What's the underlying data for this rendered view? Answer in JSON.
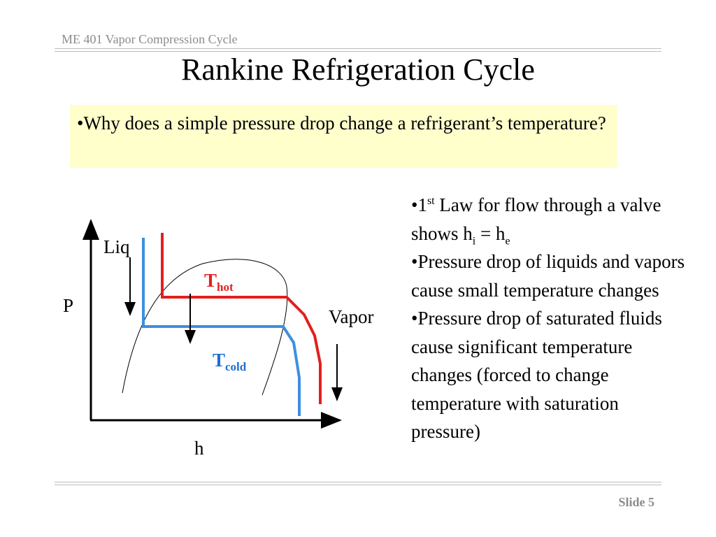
{
  "header": {
    "course": "ME 401 Vapor Compression Cycle",
    "title": "Rankine Refrigeration Cycle"
  },
  "question": "•Why does a simple pressure drop change a refrigerant’s temperature?",
  "diagram": {
    "y_axis": "P",
    "x_axis": "h",
    "liquid": "Liq",
    "vapor": "Vapor",
    "hot": {
      "symbol": "T",
      "subscript": "hot"
    },
    "cold": {
      "symbol": "T",
      "subscript": "cold"
    }
  },
  "bullets": [
    [
      {
        "text": "•1"
      },
      {
        "text": "st",
        "pos": "sup"
      },
      {
        "text": " Law for flow through a valve shows h"
      },
      {
        "text": "i",
        "pos": "sub"
      },
      {
        "text": " = h"
      },
      {
        "text": "e",
        "pos": "sub"
      }
    ],
    [
      {
        "text": "•Pressure drop of liquids and vapors cause small temperature changes"
      }
    ],
    [
      {
        "text": "•Pressure drop of saturated fluids cause significant temperature changes (forced to change temperature with saturation pressure)"
      }
    ]
  ],
  "footer": "Slide 5"
}
